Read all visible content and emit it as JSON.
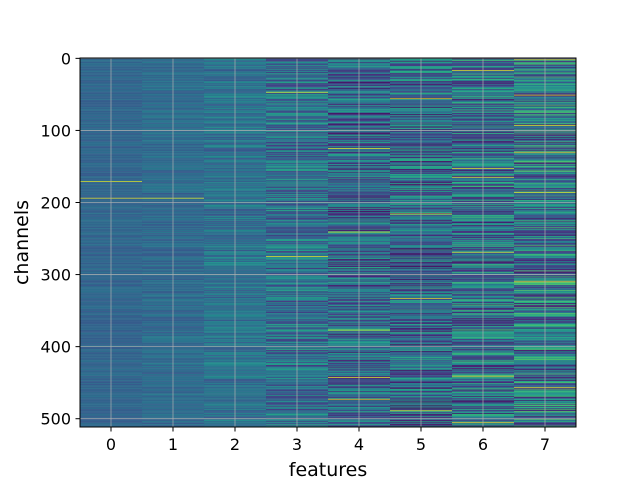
{
  "chart_data": {
    "type": "heatmap",
    "title": "",
    "xlabel": "features",
    "ylabel": "channels",
    "x_ticks": [
      0,
      1,
      2,
      3,
      4,
      5,
      6,
      7
    ],
    "y_ticks": [
      0,
      100,
      200,
      300,
      400,
      500
    ],
    "n_columns": 8,
    "n_rows": 512,
    "xlim": [
      -0.5,
      7.5
    ],
    "ylim": [
      511.5,
      -0.5
    ],
    "y_inverted": true,
    "grid": true,
    "colormap": "viridis",
    "column_variation": [
      0.05,
      0.07,
      0.12,
      0.22,
      0.27,
      0.3,
      0.32,
      0.34
    ],
    "column_base": [
      0.33,
      0.35,
      0.38,
      0.37,
      0.32,
      0.33,
      0.36,
      0.4
    ],
    "bright_rows": [
      {
        "column": 0,
        "channel": 171
      },
      {
        "column": 0,
        "channel": 194
      },
      {
        "column": 1,
        "channel": 194
      },
      {
        "column": 3,
        "channel": 47
      },
      {
        "column": 3,
        "channel": 275
      },
      {
        "column": 4,
        "channel": 125
      },
      {
        "column": 4,
        "channel": 241
      },
      {
        "column": 4,
        "channel": 377
      },
      {
        "column": 4,
        "channel": 443
      },
      {
        "column": 4,
        "channel": 473
      },
      {
        "column": 5,
        "channel": 56
      },
      {
        "column": 5,
        "channel": 216
      },
      {
        "column": 5,
        "channel": 333
      },
      {
        "column": 5,
        "channel": 489
      },
      {
        "column": 6,
        "channel": 17
      },
      {
        "column": 6,
        "channel": 153
      },
      {
        "column": 6,
        "channel": 165
      },
      {
        "column": 6,
        "channel": 269
      },
      {
        "column": 6,
        "channel": 441
      },
      {
        "column": 6,
        "channel": 505
      },
      {
        "column": 7,
        "channel": 2
      },
      {
        "column": 7,
        "channel": 51
      },
      {
        "column": 7,
        "channel": 93
      },
      {
        "column": 7,
        "channel": 131
      },
      {
        "column": 7,
        "channel": 186
      },
      {
        "column": 7,
        "channel": 310
      },
      {
        "column": 7,
        "channel": 457
      }
    ]
  },
  "colors": {
    "grid": "#b0b0b0",
    "axes": "#000000",
    "background": "#ffffff"
  }
}
